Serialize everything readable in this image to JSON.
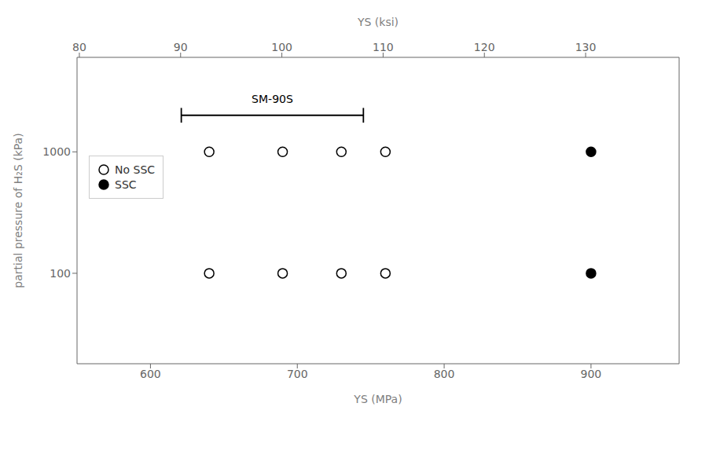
{
  "chart_data": {
    "type": "scatter",
    "xlabel": "YS  (MPa)",
    "x2label": "YS  (ksi)",
    "ylabel": "partial pressure of H₂S  (kPa)",
    "xlim": [
      550,
      960
    ],
    "xticks": [
      600,
      700,
      800,
      900
    ],
    "x2lim": [
      79.77026,
      139.23537
    ],
    "x2ticks": [
      80,
      90,
      100,
      110,
      120,
      130
    ],
    "ylim": [
      18,
      6000
    ],
    "yticks": [
      100,
      1000
    ],
    "log": "y",
    "grid": false,
    "legend": "upper left",
    "series": [
      {
        "name": "No SSC",
        "color": "#000000",
        "marker": "open_circle",
        "x": [
          640,
          690,
          730,
          760,
          640,
          690,
          730,
          760
        ],
        "values": [
          1000,
          1000,
          1000,
          1000,
          100,
          100,
          100,
          100
        ]
      },
      {
        "name": "SSC",
        "color": "#000000",
        "marker": "circle",
        "x": [
          900,
          900
        ],
        "values": [
          1000,
          100
        ]
      }
    ],
    "annotations": [
      {
        "type": "bracket",
        "text": "SM-90S",
        "x": [
          621,
          745
        ],
        "y": 2000
      }
    ]
  }
}
